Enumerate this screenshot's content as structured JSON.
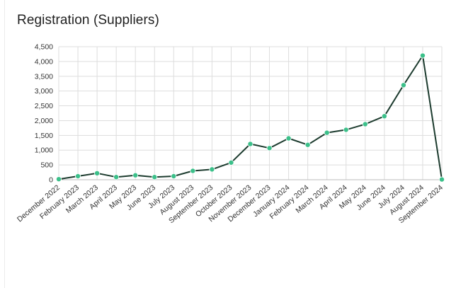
{
  "panel": {
    "title": "Registration (Suppliers)"
  },
  "chart_data": {
    "type": "line",
    "title": "Registration (Suppliers)",
    "xlabel": "",
    "ylabel": "",
    "categories": [
      "December 2022",
      "February 2023",
      "March 2023",
      "April 2023",
      "May 2023",
      "June 2023",
      "July 2023",
      "August 2023",
      "September 2023",
      "October 2023",
      "November 2023",
      "December 2023",
      "January 2024",
      "February 2024",
      "March 2024",
      "April 2024",
      "May 2024",
      "June 2024",
      "July 2024",
      "August 2024",
      "September 2024"
    ],
    "series": [
      {
        "values": [
          20,
          120,
          220,
          90,
          150,
          90,
          120,
          300,
          350,
          580,
          1210,
          1070,
          1400,
          1180,
          1590,
          1690,
          1880,
          2150,
          3200,
          4200,
          10
        ]
      }
    ],
    "ylim": [
      0,
      4500
    ],
    "yticks": [
      0,
      500,
      1000,
      1500,
      2000,
      2500,
      3000,
      3500,
      4000,
      4500
    ],
    "ytick_labels": [
      "0",
      "500",
      "1,000",
      "1,500",
      "2,000",
      "2,500",
      "3,000",
      "3,500",
      "4,000",
      "4,500"
    ],
    "grid": true,
    "legend": "none",
    "colors": {
      "line": "#1c3b2e",
      "marker": "#3cc08a",
      "grid": "#dddddd",
      "axis": "#333333"
    }
  }
}
